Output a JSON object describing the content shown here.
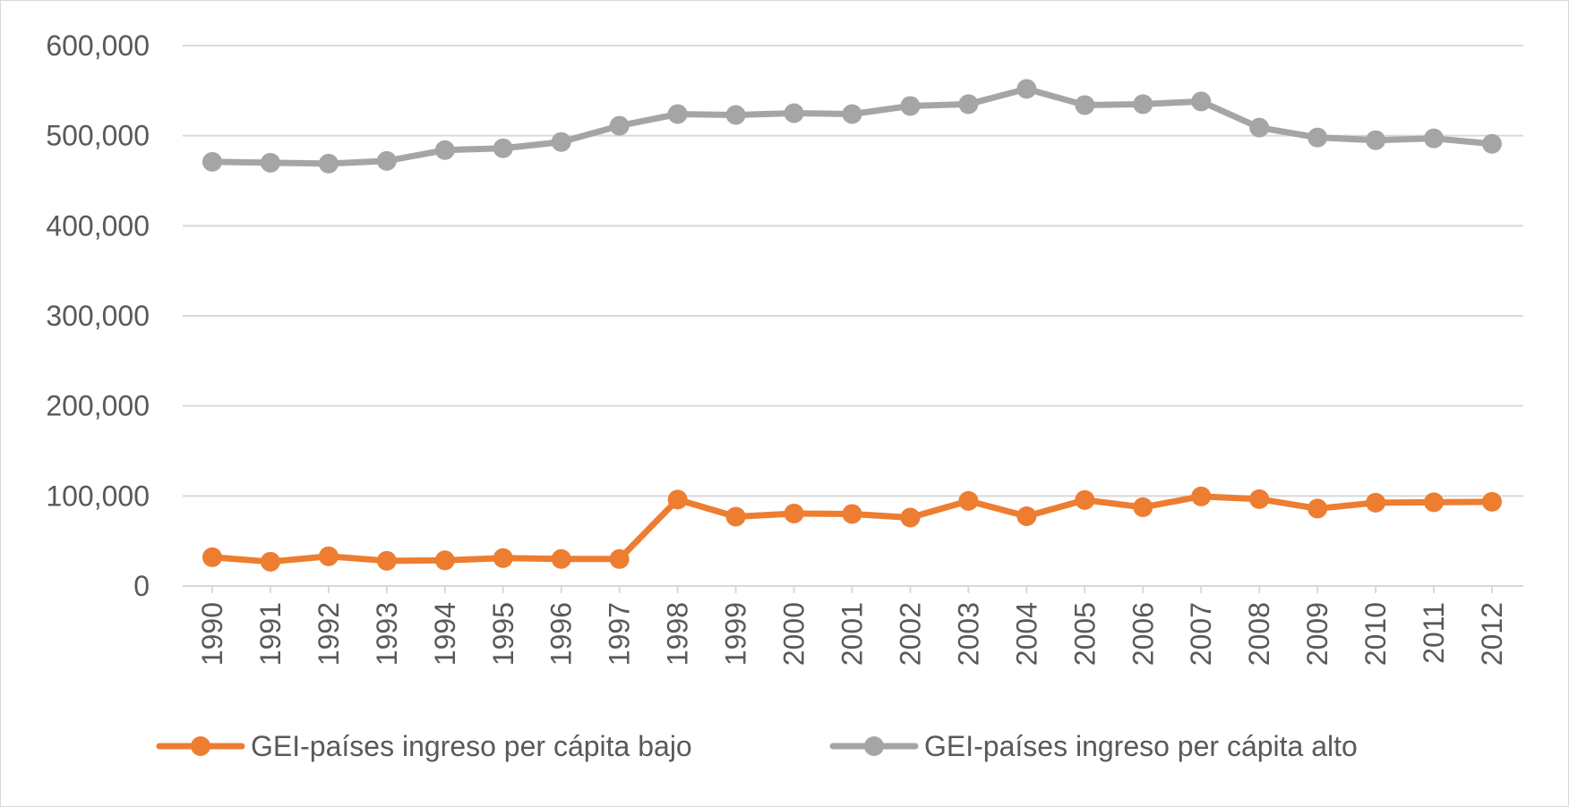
{
  "chart_data": {
    "type": "line",
    "title": "",
    "xlabel": "",
    "ylabel": "",
    "ylim": [
      0,
      600000
    ],
    "y_ticks": [
      0,
      100000,
      200000,
      300000,
      400000,
      500000,
      600000
    ],
    "y_tick_labels": [
      "0",
      "100,000",
      "200,000",
      "300,000",
      "400,000",
      "500,000",
      "600,000"
    ],
    "grid": true,
    "legend_position": "bottom",
    "categories": [
      "1990",
      "1991",
      "1992",
      "1993",
      "1994",
      "1995",
      "1996",
      "1997",
      "1998",
      "1999",
      "2000",
      "2001",
      "2002",
      "2003",
      "2004",
      "2005",
      "2006",
      "2007",
      "2008",
      "2009",
      "2010",
      "2011",
      "2012"
    ],
    "series": [
      {
        "name": "GEI-países ingreso per cápita bajo",
        "color": "#ED7D31",
        "values": [
          32000,
          27000,
          33000,
          28000,
          28500,
          31000,
          30000,
          30000,
          96000,
          77000,
          80500,
          80000,
          76000,
          94500,
          77500,
          95500,
          87500,
          99500,
          96500,
          86000,
          92500,
          93000,
          93500
        ]
      },
      {
        "name": "GEI-países ingreso per cápita alto",
        "color": "#A5A5A5",
        "values": [
          471000,
          470000,
          469000,
          472000,
          484000,
          486000,
          493000,
          511000,
          524000,
          523000,
          525000,
          524000,
          533000,
          535000,
          552000,
          534000,
          535000,
          538000,
          509000,
          498000,
          495000,
          497000,
          491000
        ]
      }
    ]
  }
}
